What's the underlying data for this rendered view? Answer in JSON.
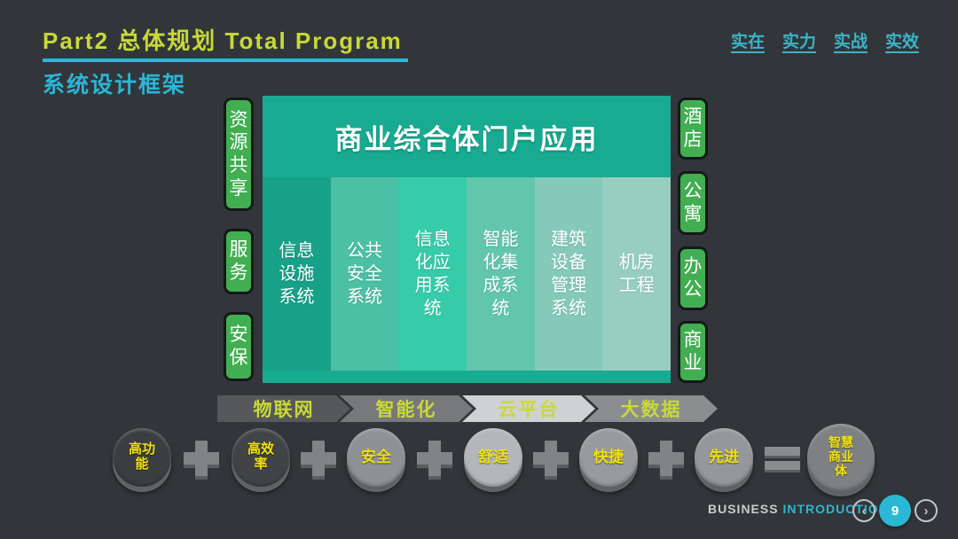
{
  "header": {
    "title": "Part2 总体规划 Total Program",
    "subtitle": "系统设计框架",
    "motto": [
      "实在",
      "实力",
      "实战",
      "实效"
    ]
  },
  "colors": {
    "accent_yellow_green": "#c8d937",
    "accent_cyan": "#2cb5d6",
    "side_box_green": "#41ae51",
    "portal_teal": "#18ab92"
  },
  "diagram": {
    "portal_title": "商业综合体门户应用",
    "left_labels": [
      "资\n源\n共\n享",
      "服\n务",
      "安\n保"
    ],
    "right_labels": [
      "酒\n店",
      "公\n寓",
      "办\n公",
      "商\n业"
    ],
    "columns": [
      {
        "label": "信息\n设施\n系统",
        "color": "#17a188"
      },
      {
        "label": "公共\n安全\n系统",
        "color": "#4cc0a4"
      },
      {
        "label": "信息\n化应\n用系\n统",
        "color": "#36ccaa"
      },
      {
        "label": "智能\n化集\n成系\n统",
        "color": "#62c6ad"
      },
      {
        "label": "建筑\n设备\n管理\n系统",
        "color": "#85cab8"
      },
      {
        "label": "机房\n工程",
        "color": "#98cec0"
      }
    ]
  },
  "banner": {
    "segments": [
      {
        "label": "物联网",
        "color": "#57585b"
      },
      {
        "label": "智能化",
        "color": "#77797c"
      },
      {
        "label": "云平台",
        "color": "#cfd1d2"
      },
      {
        "label": "大数据",
        "color": "#8b8d90"
      }
    ]
  },
  "formula": {
    "coins": [
      {
        "label": "高功\n能",
        "color": "#3b3d40"
      },
      {
        "label": "高效\n率",
        "color": "#414346"
      },
      {
        "label": "安全",
        "color": "#8f9194"
      },
      {
        "label": "舒适",
        "color": "#b4b6b9"
      },
      {
        "label": "快捷",
        "color": "#989a9d"
      },
      {
        "label": "先进",
        "color": "#95979a"
      },
      {
        "label": "智慧\n商业\n体",
        "color": "#7e8084"
      }
    ],
    "operators": [
      "+",
      "+",
      "+",
      "+",
      "+",
      "="
    ]
  },
  "footer": {
    "brand_bold": "BUSINESS",
    "brand_accent": "INTRODUCTION",
    "page": "9",
    "prev_icon": "‹",
    "next_icon": "›"
  }
}
